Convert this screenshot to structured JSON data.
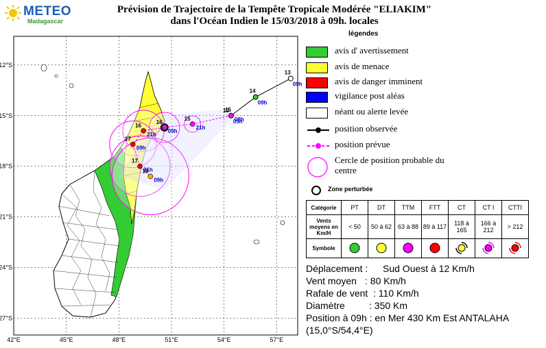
{
  "logo": {
    "brand": "METEO",
    "sub": "Madagascar"
  },
  "title": {
    "line1": "Prévision de Trajectoire de la Tempête Tropicale Modérée \"ELIAKIM\"",
    "line2": "dans l'Océan  Indien  le  15/03/2018 à 09h. locales"
  },
  "colors": {
    "avertissement": "#33cc33",
    "menace": "#ffff33",
    "danger": "#ff0000",
    "vigilance": "#0000ff",
    "neant": "#ffffff",
    "prevue": "#ff00ff",
    "land": "#ffffff",
    "sea": "#ffffff"
  },
  "map": {
    "lat_labels": [
      "12°S",
      "15°S",
      "18°S",
      "21°S",
      "24°S",
      "27°S"
    ],
    "lon_labels": [
      "42°E",
      "45°E",
      "48°E",
      "51°E",
      "54°E",
      "57°E"
    ],
    "track_observed": [
      {
        "lon": 57.8,
        "lat": -12.8,
        "vmax": "13",
        "time": "09h"
      },
      {
        "lon": 55.8,
        "lat": -13.9,
        "vmax": "14",
        "time": "09h"
      },
      {
        "lon": 54.4,
        "lat": -15.0,
        "vmax": "15",
        "time": "05h"
      }
    ],
    "track_forecast": [
      {
        "lon": 54.4,
        "lat": -15.0,
        "vmax": "15",
        "time": "08h"
      },
      {
        "lon": 52.2,
        "lat": -15.5,
        "vmax": "15",
        "time": "21h"
      },
      {
        "lon": 50.6,
        "lat": -15.7,
        "vmax": "16",
        "time": "09h"
      },
      {
        "lon": 49.4,
        "lat": -15.9,
        "vmax": "16",
        "time": "21h"
      },
      {
        "lon": 48.8,
        "lat": -16.7,
        "vmax": "17",
        "time": "09h"
      },
      {
        "lon": 49.2,
        "lat": -18.0,
        "vmax": "17",
        "time": "21h"
      },
      {
        "lon": 49.8,
        "lat": -18.6,
        "vmax": "18",
        "time": "09h"
      }
    ],
    "zone_perturbee": {
      "lon": 50.6,
      "lat": -15.7
    }
  },
  "legend": {
    "title": "légendes",
    "items": [
      {
        "label": "avis d' avertissement"
      },
      {
        "label": "avis de menace"
      },
      {
        "label": "avis de danger imminent"
      },
      {
        "label": "vigilance post aléas"
      },
      {
        "label": "néant ou alerte levée"
      },
      {
        "label": "position observée"
      },
      {
        "label": "position prévue"
      },
      {
        "label": "Cercle de position probable du centre"
      }
    ],
    "zone_label": "Zone perturbée"
  },
  "category_table": {
    "row_headers": [
      "Catégorie",
      "Vents moyens en Km/H",
      "Symbole"
    ],
    "categories": [
      "PT",
      "DT",
      "TTM",
      "FTT",
      "CT",
      "CT I",
      "CTTI"
    ],
    "winds": [
      "< 50",
      "50 à 62",
      "63 à 88",
      "89 à 117",
      "118 à 165",
      "166 à 212",
      "> 212"
    ],
    "symbol_colors": [
      "#33cc33",
      "#ffff33",
      "#ff00ff",
      "#ff0000",
      "#ffff33",
      "#ff00ff",
      "#ff0000"
    ]
  },
  "info": {
    "deplacement_k": "Déplacement :",
    "deplacement_v": "Sud Ouest à 12  Km/h",
    "vent_k": "Vent moyen",
    "vent_v": ": 80  Km/h",
    "rafale_k": "Rafale de vent",
    "rafale_v": ": 110  Km/h",
    "diametre_k": "Diamètre",
    "diametre_v": ": 350 Km",
    "position_line": "Position à 09h : en Mer 430 Km Est ANTALAHA",
    "coords": "(15,0°S/54,4°E)"
  }
}
